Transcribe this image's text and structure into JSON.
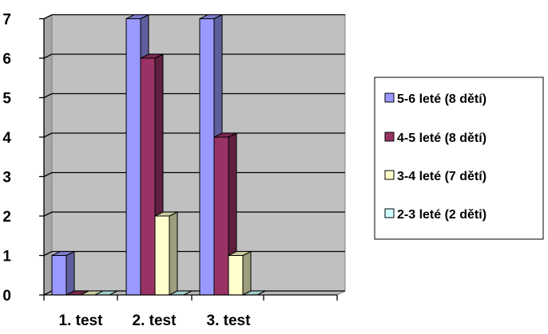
{
  "chart_data": {
    "type": "bar",
    "style": "3d-clustered-column",
    "categories": [
      "1. test",
      "2. test",
      "3. test"
    ],
    "series": [
      {
        "name": "5-6 leté (8 dětí)",
        "values": [
          1,
          7,
          7
        ],
        "color": "#9999FF"
      },
      {
        "name": "4-5 leté (8 dětí)",
        "values": [
          0,
          6,
          4
        ],
        "color": "#993366"
      },
      {
        "name": "3-4 leté (7 dětí)",
        "values": [
          0,
          2,
          1
        ],
        "color": "#FFFFCC"
      },
      {
        "name": "2-3 leté (2 děti)",
        "values": [
          0,
          0,
          0
        ],
        "color": "#CCFFFF"
      }
    ],
    "ylim": [
      0,
      7
    ],
    "yticks": [
      0,
      1,
      2,
      3,
      4,
      5,
      6,
      7
    ],
    "grid": true,
    "legend_position": "right",
    "wall_color": "#C0C0C0"
  }
}
